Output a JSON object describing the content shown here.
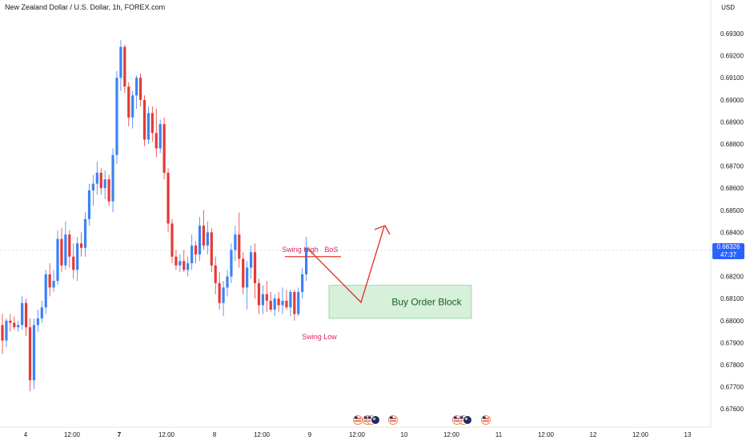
{
  "header": {
    "title": "New Zealand Dollar / U.S. Dollar, 1h, FOREX.com",
    "currency": "USD"
  },
  "current_price": {
    "value": "0.68326",
    "countdown": "47:37"
  },
  "colors": {
    "up": "#3b82f6",
    "down": "#e53935",
    "order_block_fill": "#d7f0d9",
    "order_block_stroke": "#8fd19e",
    "annotation": "#e0245e",
    "arrow": "#e53935",
    "price_tag": "#2962ff"
  },
  "events": {
    "icons": [
      "us-flag-icon",
      "us-flag-icon",
      "us-flag-icon",
      "nz-flag-icon",
      "us-flag-icon",
      "us-flag-icon",
      "us-flag-icon",
      "nz-flag-icon",
      "us-flag-icon"
    ]
  },
  "chart_data": {
    "type": "candlestick",
    "title": "New Zealand Dollar / U.S. Dollar, 1h, FOREX.com",
    "ylabel": "USD",
    "ylim": [
      0.6755,
      0.6975
    ],
    "y_ticks": [
      "0.69300",
      "0.69200",
      "0.69100",
      "0.69000",
      "0.68900",
      "0.68800",
      "0.68700",
      "0.68600",
      "0.68500",
      "0.68400",
      "0.68200",
      "0.68100",
      "0.68000",
      "0.67900",
      "0.67800",
      "0.67700",
      "0.67600"
    ],
    "x_ticks": [
      {
        "label": "4",
        "bold": false
      },
      {
        "label": "12:00",
        "bold": false
      },
      {
        "label": "7",
        "bold": true
      },
      {
        "label": "12:00",
        "bold": false
      },
      {
        "label": "8",
        "bold": false
      },
      {
        "label": "12:00",
        "bold": false
      },
      {
        "label": "9",
        "bold": false
      },
      {
        "label": "12:00",
        "bold": false
      },
      {
        "label": "10",
        "bold": false
      },
      {
        "label": "12:00",
        "bold": false
      },
      {
        "label": "11",
        "bold": false
      },
      {
        "label": "12:00",
        "bold": false
      },
      {
        "label": "12",
        "bold": false
      },
      {
        "label": "12:00",
        "bold": false
      },
      {
        "label": "13",
        "bold": false
      }
    ],
    "candles": [
      [
        0.6798,
        0.6803,
        0.6785,
        0.6791
      ],
      [
        0.6791,
        0.6801,
        0.6788,
        0.68
      ],
      [
        0.68,
        0.6803,
        0.6795,
        0.6799
      ],
      [
        0.6799,
        0.6802,
        0.6796,
        0.6797
      ],
      [
        0.6797,
        0.68,
        0.6795,
        0.6798
      ],
      [
        0.6798,
        0.6811,
        0.6796,
        0.6808
      ],
      [
        0.6808,
        0.681,
        0.6793,
        0.6797
      ],
      [
        0.6797,
        0.6801,
        0.6768,
        0.6773
      ],
      [
        0.6773,
        0.6801,
        0.6769,
        0.6798
      ],
      [
        0.6798,
        0.6805,
        0.6795,
        0.6801
      ],
      [
        0.6801,
        0.6809,
        0.6799,
        0.6806
      ],
      [
        0.6806,
        0.6823,
        0.6803,
        0.6821
      ],
      [
        0.6821,
        0.6826,
        0.6811,
        0.6815
      ],
      [
        0.6815,
        0.6823,
        0.6813,
        0.6818
      ],
      [
        0.6818,
        0.6841,
        0.6816,
        0.6837
      ],
      [
        0.6837,
        0.6842,
        0.6822,
        0.6825
      ],
      [
        0.6825,
        0.6845,
        0.6823,
        0.6839
      ],
      [
        0.6839,
        0.6841,
        0.6824,
        0.6829
      ],
      [
        0.6829,
        0.6835,
        0.6819,
        0.6823
      ],
      [
        0.6823,
        0.6838,
        0.6818,
        0.6835
      ],
      [
        0.6835,
        0.684,
        0.6829,
        0.6833
      ],
      [
        0.6833,
        0.6849,
        0.6829,
        0.6846
      ],
      [
        0.6846,
        0.6862,
        0.6843,
        0.6859
      ],
      [
        0.6859,
        0.6866,
        0.6852,
        0.6862
      ],
      [
        0.6862,
        0.6872,
        0.6857,
        0.6867
      ],
      [
        0.6867,
        0.6869,
        0.6857,
        0.686
      ],
      [
        0.686,
        0.6868,
        0.6855,
        0.6864
      ],
      [
        0.6864,
        0.6866,
        0.6852,
        0.6854
      ],
      [
        0.6854,
        0.6878,
        0.6849,
        0.6875
      ],
      [
        0.6875,
        0.6913,
        0.6871,
        0.691
      ],
      [
        0.691,
        0.6927,
        0.6904,
        0.6924
      ],
      [
        0.6924,
        0.6925,
        0.6903,
        0.6906
      ],
      [
        0.6906,
        0.6908,
        0.6888,
        0.6892
      ],
      [
        0.6892,
        0.6904,
        0.6887,
        0.6902
      ],
      [
        0.6902,
        0.6911,
        0.6896,
        0.691
      ],
      [
        0.691,
        0.6912,
        0.6897,
        0.69
      ],
      [
        0.69,
        0.6902,
        0.6879,
        0.6882
      ],
      [
        0.6882,
        0.6897,
        0.688,
        0.6894
      ],
      [
        0.6894,
        0.6897,
        0.6881,
        0.6885
      ],
      [
        0.6885,
        0.6896,
        0.6874,
        0.6878
      ],
      [
        0.6878,
        0.6891,
        0.6876,
        0.6889
      ],
      [
        0.6889,
        0.6892,
        0.6864,
        0.6867
      ],
      [
        0.6867,
        0.6869,
        0.684,
        0.6844
      ],
      [
        0.6844,
        0.6846,
        0.6826,
        0.6829
      ],
      [
        0.6829,
        0.6832,
        0.6823,
        0.6825
      ],
      [
        0.6825,
        0.683,
        0.6822,
        0.6827
      ],
      [
        0.6827,
        0.6832,
        0.6822,
        0.6823
      ],
      [
        0.6823,
        0.6829,
        0.682,
        0.6826
      ],
      [
        0.6826,
        0.6839,
        0.6823,
        0.6834
      ],
      [
        0.6834,
        0.6836,
        0.6826,
        0.683
      ],
      [
        0.683,
        0.6847,
        0.6827,
        0.6843
      ],
      [
        0.6843,
        0.685,
        0.6832,
        0.6834
      ],
      [
        0.6834,
        0.6845,
        0.683,
        0.684
      ],
      [
        0.684,
        0.6842,
        0.6822,
        0.6825
      ],
      [
        0.6825,
        0.6829,
        0.6812,
        0.6817
      ],
      [
        0.6817,
        0.6822,
        0.6805,
        0.6808
      ],
      [
        0.6808,
        0.6818,
        0.6802,
        0.6815
      ],
      [
        0.6815,
        0.6823,
        0.6811,
        0.682
      ],
      [
        0.682,
        0.6835,
        0.6817,
        0.6832
      ],
      [
        0.6832,
        0.6843,
        0.6827,
        0.6839
      ],
      [
        0.6839,
        0.6849,
        0.6824,
        0.6828
      ],
      [
        0.6828,
        0.6831,
        0.6812,
        0.6815
      ],
      [
        0.6815,
        0.6827,
        0.6805,
        0.6824
      ],
      [
        0.6824,
        0.6834,
        0.6819,
        0.6831
      ],
      [
        0.6831,
        0.6835,
        0.681,
        0.6817
      ],
      [
        0.6817,
        0.6819,
        0.6803,
        0.6807
      ],
      [
        0.6807,
        0.6816,
        0.6803,
        0.6812
      ],
      [
        0.6812,
        0.6818,
        0.6804,
        0.6809
      ],
      [
        0.6809,
        0.6813,
        0.6804,
        0.6805
      ],
      [
        0.6805,
        0.6812,
        0.6802,
        0.681
      ],
      [
        0.681,
        0.6813,
        0.6804,
        0.6807
      ],
      [
        0.6807,
        0.6815,
        0.6803,
        0.6809
      ],
      [
        0.6809,
        0.6814,
        0.6805,
        0.6806
      ],
      [
        0.6806,
        0.6814,
        0.6802,
        0.6813
      ],
      [
        0.6813,
        0.6814,
        0.68,
        0.6803
      ],
      [
        0.6803,
        0.6815,
        0.6802,
        0.6813
      ],
      [
        0.6813,
        0.6824,
        0.681,
        0.6821
      ],
      [
        0.6821,
        0.6838,
        0.6818,
        0.6833
      ]
    ],
    "annotations": {
      "swing_high": {
        "text": "Swing High",
        "price": 0.6829
      },
      "swing_low": {
        "text": "Swing Low"
      },
      "bos": {
        "text": "BoS",
        "price": 0.6829
      },
      "order_block": {
        "text": "Buy Order Block",
        "top": 0.6816,
        "bottom": 0.6801
      }
    },
    "grid": false,
    "legend": "none"
  }
}
